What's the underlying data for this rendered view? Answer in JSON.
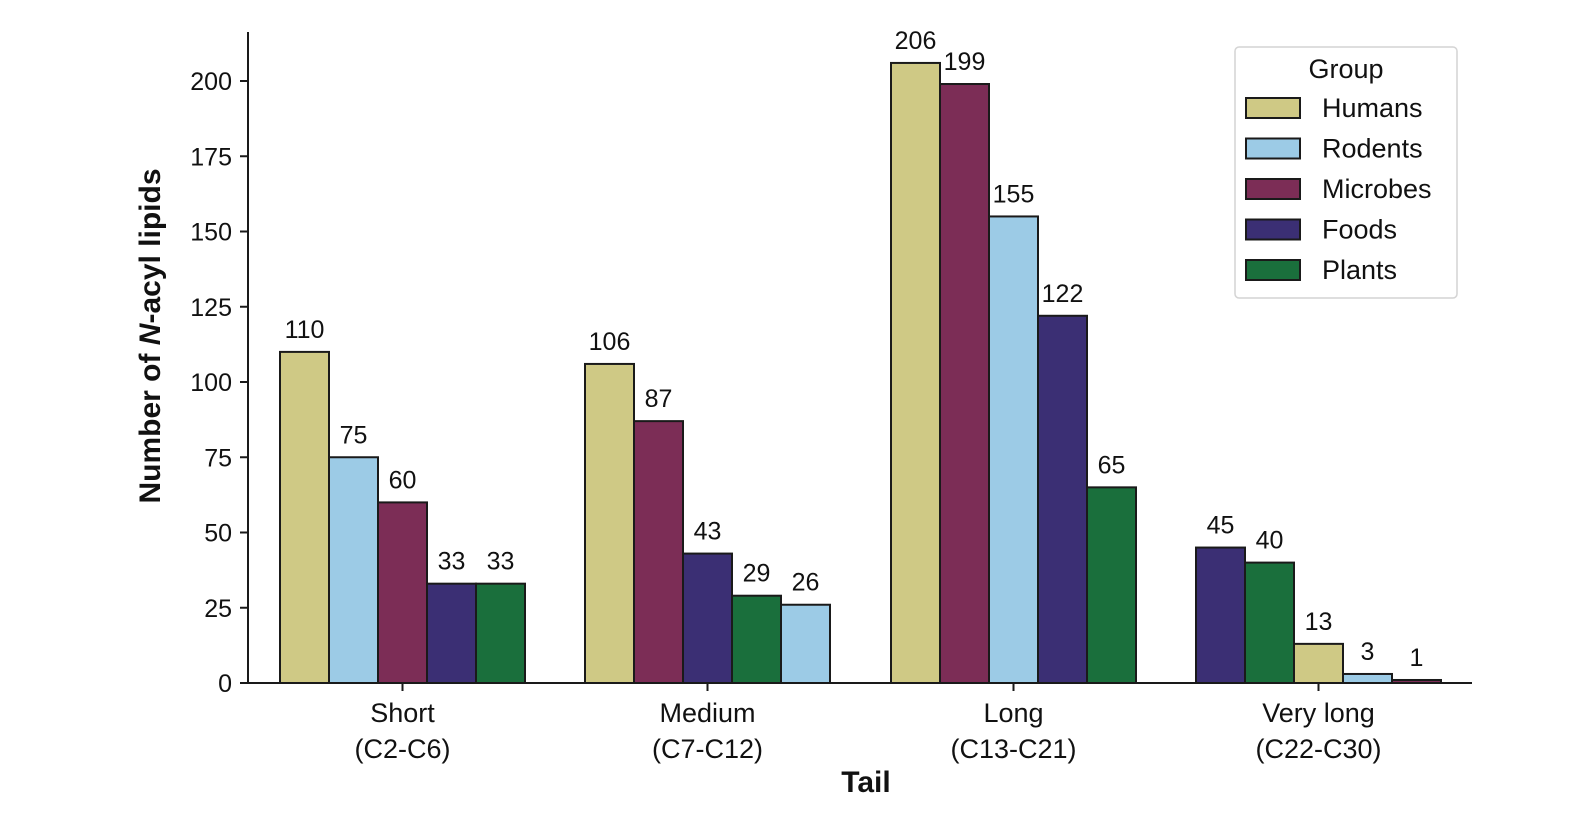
{
  "chart_data": {
    "type": "bar",
    "xlabel": "Tail",
    "ylabel_prefix": "Number of ",
    "ylabel_italic": "N",
    "ylabel_suffix": "-acyl lipids",
    "ylim": [
      0,
      215
    ],
    "yticks": [
      0,
      25,
      50,
      75,
      100,
      125,
      150,
      175,
      200
    ],
    "grid": false,
    "legend_position": "top-right",
    "legend_title": "Group",
    "legend": [
      "Humans",
      "Rodents",
      "Microbes",
      "Foods",
      "Plants"
    ],
    "colors": {
      "Humans": "#cfc985",
      "Rodents": "#9ccbe6",
      "Microbes": "#7c2d56",
      "Foods": "#3b2f74",
      "Plants": "#1a6f3c"
    },
    "categories": [
      {
        "label_line1": "Short",
        "label_line2": "(C2-C6)",
        "bars": [
          {
            "group": "Humans",
            "value": 110,
            "label": "110"
          },
          {
            "group": "Rodents",
            "value": 75,
            "label": "75"
          },
          {
            "group": "Microbes",
            "value": 60,
            "label": "60"
          },
          {
            "group": "Foods",
            "value": 33,
            "label": "33"
          },
          {
            "group": "Plants",
            "value": 33,
            "label": "33"
          }
        ]
      },
      {
        "label_line1": "Medium",
        "label_line2": "(C7-C12)",
        "bars": [
          {
            "group": "Humans",
            "value": 106,
            "label": "106"
          },
          {
            "group": "Microbes",
            "value": 87,
            "label": "87"
          },
          {
            "group": "Foods",
            "value": 43,
            "label": "43"
          },
          {
            "group": "Plants",
            "value": 29,
            "label": "29"
          },
          {
            "group": "Rodents",
            "value": 26,
            "label": "26"
          }
        ]
      },
      {
        "label_line1": "Long",
        "label_line2": "(C13-C21)",
        "bars": [
          {
            "group": "Humans",
            "value": 206,
            "label": "206"
          },
          {
            "group": "Microbes",
            "value": 199,
            "label": "199"
          },
          {
            "group": "Rodents",
            "value": 155,
            "label": "155"
          },
          {
            "group": "Foods",
            "value": 122,
            "label": "122"
          },
          {
            "group": "Plants",
            "value": 65,
            "label": "65"
          }
        ]
      },
      {
        "label_line1": "Very long",
        "label_line2": "(C22-C30)",
        "bars": [
          {
            "group": "Foods",
            "value": 45,
            "label": "45"
          },
          {
            "group": "Plants",
            "value": 40,
            "label": "40"
          },
          {
            "group": "Humans",
            "value": 13,
            "label": "13"
          },
          {
            "group": "Rodents",
            "value": 3,
            "label": "3"
          },
          {
            "group": "Microbes",
            "value": 1,
            "label": "1"
          }
        ]
      }
    ]
  }
}
